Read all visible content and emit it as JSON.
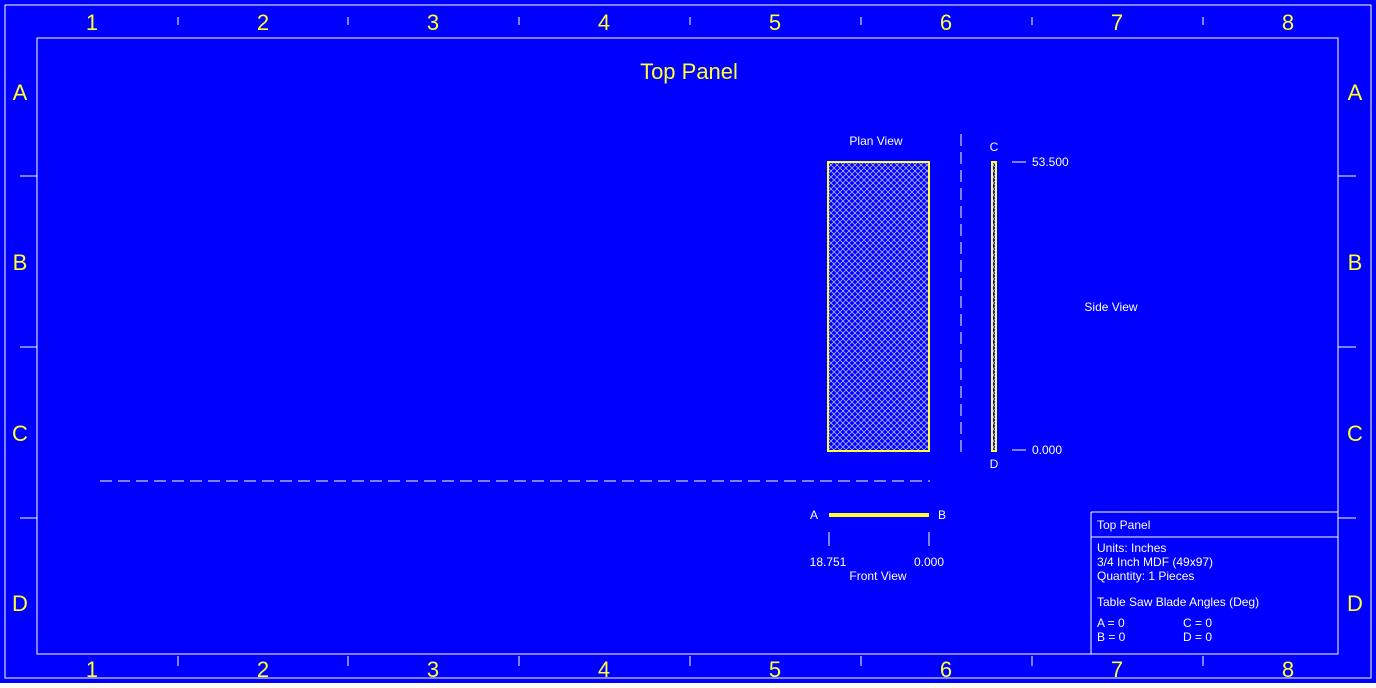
{
  "drawing": {
    "title": "Top Panel",
    "columns": [
      "1",
      "2",
      "3",
      "4",
      "5",
      "6",
      "7",
      "8"
    ],
    "rows": [
      "A",
      "B",
      "C",
      "D"
    ]
  },
  "views": {
    "plan": {
      "label": "Plan View"
    },
    "side": {
      "label": "Side View",
      "top_end_label": "C",
      "bottom_end_label": "D",
      "top_dimension": "53.500",
      "bottom_dimension": "0.000"
    },
    "front": {
      "label": "Front View",
      "left_end_label": "A",
      "right_end_label": "B",
      "left_dimension": "18.751",
      "right_dimension": "0.000"
    }
  },
  "title_block": {
    "name": "Top Panel",
    "units": "Units: Inches",
    "material": "3/4 Inch MDF (49x97)",
    "quantity": "Quantity: 1 Pieces",
    "angles_heading": "Table Saw Blade Angles (Deg)",
    "angle_a": "A = 0",
    "angle_b": "B = 0",
    "angle_c": "C = 0",
    "angle_d": "D = 0"
  },
  "colors": {
    "background": "#0000ff",
    "border": "#ffffff",
    "zone_text": "#ffff33",
    "part_outline": "#ffff33",
    "hatch": "#b0b0ff",
    "label_text": "#ffffff"
  }
}
